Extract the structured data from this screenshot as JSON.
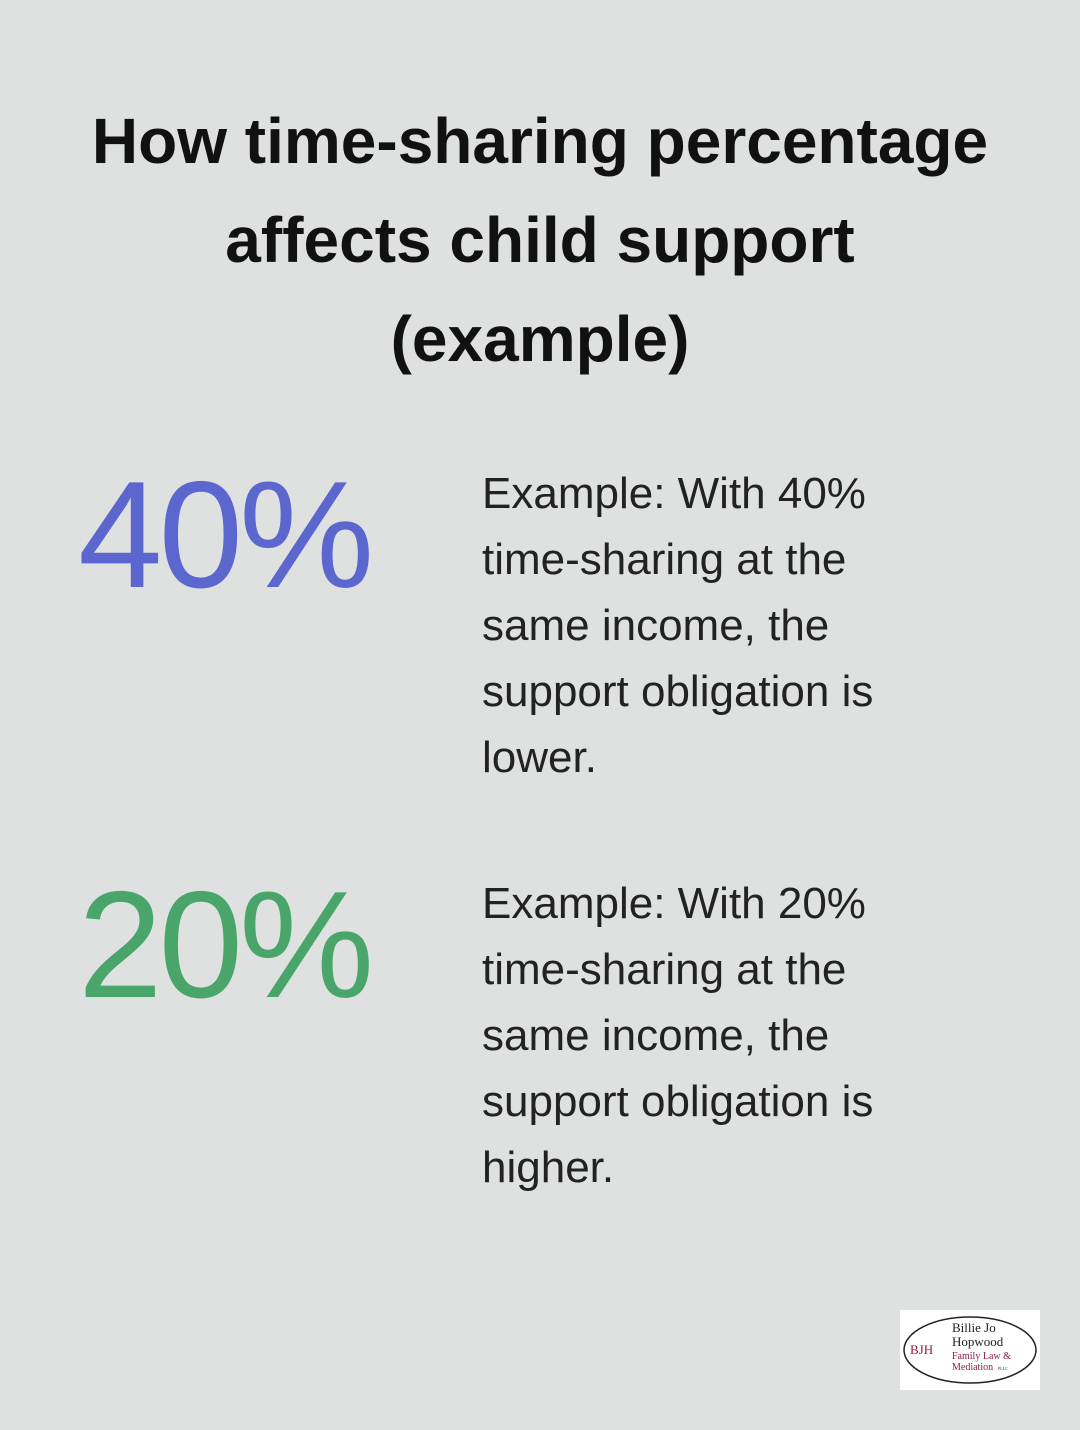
{
  "title": "How time-sharing percentage affects child support (example)",
  "stats": [
    {
      "value": "40%",
      "color": "#5c66cf",
      "description": "Example: With 40% time-sharing at the same income, the support obligation is lower."
    },
    {
      "value": "20%",
      "color": "#4aa56b",
      "description": "Example: With 20% time-sharing at the same income, the support obligation is higher."
    }
  ],
  "logo": {
    "initials": "BJH",
    "name_line1": "Billie Jo",
    "name_line2": "Hopwood",
    "tagline_line1": "Family Law &",
    "tagline_line2": "Mediation",
    "suffix": "PLLC"
  }
}
